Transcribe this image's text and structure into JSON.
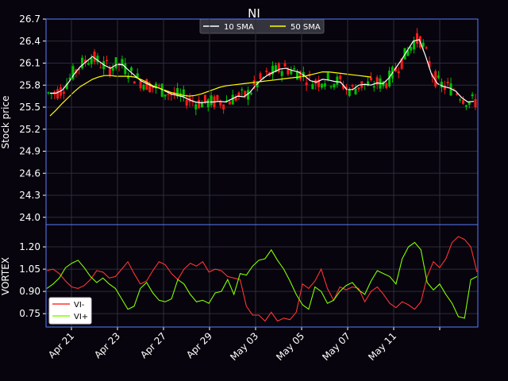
{
  "chart_data": [
    {
      "type": "candlestick",
      "title": "NI",
      "ylabel": "Stock price",
      "ylim": [
        23.9,
        26.7
      ],
      "yticks": [
        "24.0",
        "24.3",
        "24.6",
        "24.9",
        "25.2",
        "25.5",
        "25.8",
        "26.1",
        "26.4",
        "26.7"
      ],
      "grid": true,
      "legend_position": "top-center",
      "colors": {
        "up": "#00c000",
        "down": "#ff1a1a",
        "sma10": "#ffffff",
        "sma50": "#ffff00",
        "axes": "#5a7cff"
      },
      "series": [
        {
          "name": "10 SMA",
          "color": "#ffffff",
          "points": [
            [
              0,
              25.69
            ],
            [
              1,
              25.69
            ],
            [
              2,
              25.73
            ],
            [
              3,
              25.83
            ],
            [
              4,
              25.95
            ],
            [
              5,
              26.05
            ],
            [
              6,
              26.12
            ],
            [
              7,
              26.19
            ],
            [
              8,
              26.13
            ],
            [
              9,
              26.07
            ],
            [
              10,
              26.03
            ],
            [
              11,
              26.08
            ],
            [
              12,
              26.08
            ],
            [
              13,
              26.0
            ],
            [
              14,
              25.93
            ],
            [
              15,
              25.86
            ],
            [
              16,
              25.82
            ],
            [
              17,
              25.78
            ],
            [
              18,
              25.76
            ],
            [
              19,
              25.72
            ],
            [
              20,
              25.68
            ],
            [
              21,
              25.66
            ],
            [
              22,
              25.64
            ],
            [
              23,
              25.6
            ],
            [
              24,
              25.57
            ],
            [
              25,
              25.56
            ],
            [
              26,
              25.57
            ],
            [
              27,
              25.57
            ],
            [
              28,
              25.58
            ],
            [
              29,
              25.57
            ],
            [
              30,
              25.61
            ],
            [
              31,
              25.65
            ],
            [
              32,
              25.64
            ],
            [
              33,
              25.7
            ],
            [
              34,
              25.8
            ],
            [
              35,
              25.88
            ],
            [
              36,
              25.94
            ],
            [
              37,
              25.98
            ],
            [
              38,
              26.02
            ],
            [
              39,
              26.03
            ],
            [
              40,
              26.0
            ],
            [
              41,
              25.98
            ],
            [
              42,
              25.93
            ],
            [
              43,
              25.86
            ],
            [
              44,
              25.84
            ],
            [
              45,
              25.88
            ],
            [
              46,
              25.87
            ],
            [
              47,
              25.85
            ],
            [
              48,
              25.84
            ],
            [
              49,
              25.74
            ],
            [
              50,
              25.74
            ],
            [
              51,
              25.8
            ],
            [
              52,
              25.81
            ],
            [
              53,
              25.8
            ],
            [
              54,
              25.83
            ],
            [
              55,
              25.82
            ],
            [
              56,
              25.9
            ],
            [
              57,
              26.02
            ],
            [
              58,
              26.14
            ],
            [
              59,
              26.27
            ],
            [
              60,
              26.4
            ],
            [
              61,
              26.42
            ],
            [
              62,
              26.2
            ],
            [
              63,
              25.95
            ],
            [
              64,
              25.82
            ],
            [
              65,
              25.78
            ],
            [
              66,
              25.76
            ],
            [
              67,
              25.72
            ],
            [
              68,
              25.63
            ],
            [
              69,
              25.57
            ],
            [
              70,
              25.58
            ]
          ]
        },
        {
          "name": "50 SMA",
          "color": "#ffff00",
          "points": [
            [
              0,
              25.38
            ],
            [
              1,
              25.46
            ],
            [
              2,
              25.55
            ],
            [
              3,
              25.63
            ],
            [
              4,
              25.71
            ],
            [
              5,
              25.78
            ],
            [
              6,
              25.83
            ],
            [
              7,
              25.88
            ],
            [
              8,
              25.91
            ],
            [
              9,
              25.93
            ],
            [
              10,
              25.93
            ],
            [
              11,
              25.92
            ],
            [
              12,
              25.92
            ],
            [
              13,
              25.92
            ],
            [
              14,
              25.91
            ],
            [
              15,
              25.88
            ],
            [
              16,
              25.84
            ],
            [
              17,
              25.79
            ],
            [
              18,
              25.76
            ],
            [
              19,
              25.73
            ],
            [
              20,
              25.7
            ],
            [
              21,
              25.68
            ],
            [
              22,
              25.66
            ],
            [
              23,
              25.65
            ],
            [
              24,
              25.66
            ],
            [
              25,
              25.68
            ],
            [
              26,
              25.71
            ],
            [
              27,
              25.74
            ],
            [
              28,
              25.77
            ],
            [
              29,
              25.79
            ],
            [
              30,
              25.8
            ],
            [
              31,
              25.81
            ],
            [
              32,
              25.82
            ],
            [
              33,
              25.83
            ],
            [
              34,
              25.84
            ],
            [
              35,
              25.85
            ],
            [
              36,
              25.86
            ],
            [
              37,
              25.87
            ],
            [
              38,
              25.88
            ],
            [
              39,
              25.89
            ],
            [
              40,
              25.9
            ],
            [
              41,
              25.91
            ],
            [
              42,
              25.92
            ],
            [
              43,
              25.94
            ],
            [
              44,
              25.96
            ],
            [
              45,
              25.98
            ],
            [
              46,
              25.98
            ],
            [
              47,
              25.97
            ],
            [
              48,
              25.96
            ],
            [
              49,
              25.95
            ],
            [
              50,
              25.94
            ],
            [
              51,
              25.93
            ],
            [
              52,
              25.92
            ],
            [
              53,
              25.91
            ]
          ]
        }
      ]
    },
    {
      "type": "line",
      "ylabel": "VORTEX",
      "ylim": [
        0.66,
        1.35
      ],
      "yticks": [
        "0.75",
        "0.90",
        "1.05",
        "1.20"
      ],
      "grid": true,
      "legend_position": "bottom-left",
      "x_tick_labels": [
        "Apr 21",
        "Apr 23",
        "Apr 27",
        "Apr 29",
        "May 03",
        "May 05",
        "May 07",
        "May 11"
      ],
      "series": [
        {
          "name": "VI-",
          "color": "#ff3333",
          "values": [
            1.04,
            1.05,
            1.02,
            0.97,
            0.93,
            0.92,
            0.94,
            0.98,
            1.04,
            1.03,
            0.99,
            1.0,
            1.05,
            1.1,
            1.02,
            0.95,
            0.97,
            1.04,
            1.1,
            1.08,
            1.02,
            0.98,
            1.05,
            1.09,
            1.07,
            1.1,
            1.03,
            1.05,
            1.04,
            1.0,
            0.99,
            0.98,
            0.8,
            0.74,
            0.74,
            0.7,
            0.76,
            0.7,
            0.72,
            0.71,
            0.76,
            0.95,
            0.92,
            0.97,
            1.05,
            0.92,
            0.84,
            0.93,
            0.91,
            0.93,
            0.92,
            0.83,
            0.9,
            0.93,
            0.88,
            0.82,
            0.79,
            0.83,
            0.81,
            0.78,
            0.83,
            1.0,
            1.1,
            1.06,
            1.12,
            1.23,
            1.27,
            1.25,
            1.2,
            1.03
          ]
        },
        {
          "name": "VI+",
          "color": "#80ff00",
          "values": [
            0.92,
            0.95,
            0.99,
            1.06,
            1.09,
            1.11,
            1.06,
            1.0,
            0.96,
            0.99,
            0.95,
            0.92,
            0.85,
            0.78,
            0.8,
            0.92,
            0.96,
            0.89,
            0.84,
            0.83,
            0.85,
            0.98,
            0.95,
            0.88,
            0.83,
            0.84,
            0.82,
            0.89,
            0.9,
            0.98,
            0.88,
            1.02,
            1.01,
            1.07,
            1.11,
            1.12,
            1.18,
            1.11,
            1.05,
            0.97,
            0.88,
            0.81,
            0.78,
            0.93,
            0.9,
            0.82,
            0.84,
            0.9,
            0.94,
            0.96,
            0.91,
            0.88,
            0.97,
            1.04,
            1.02,
            1.0,
            0.95,
            1.12,
            1.2,
            1.23,
            1.18,
            0.96,
            0.91,
            0.95,
            0.88,
            0.82,
            0.73,
            0.72,
            0.98,
            1.0
          ]
        }
      ]
    }
  ]
}
